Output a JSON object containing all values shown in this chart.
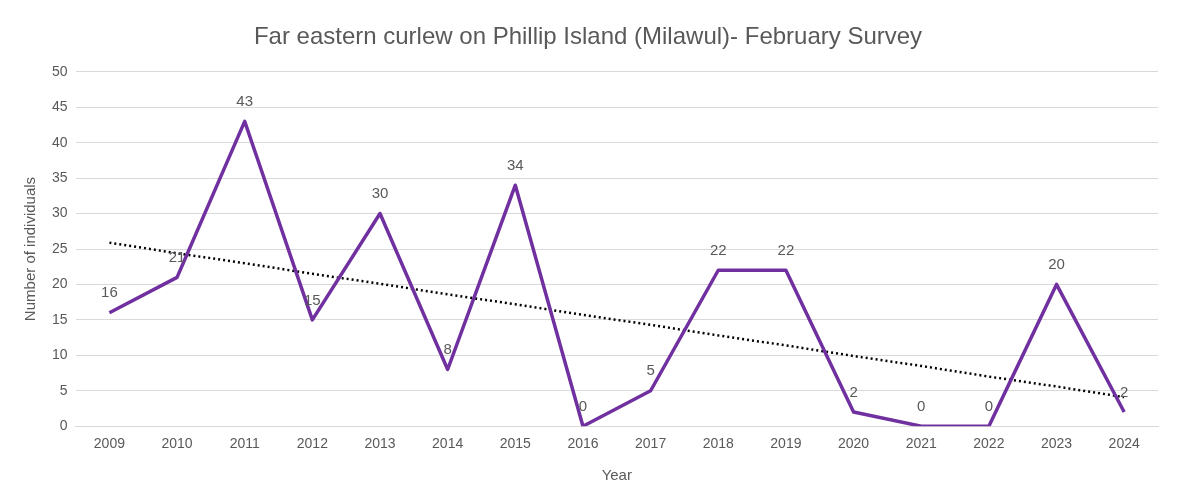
{
  "chart_data": {
    "type": "line",
    "title": "Far eastern curlew on Phillip Island (Milawul)- February Survey",
    "xlabel": "Year",
    "ylabel": "Number of individuals",
    "categories": [
      "2009",
      "2010",
      "2011",
      "2012",
      "2013",
      "2014",
      "2015",
      "2016",
      "2017",
      "2018",
      "2019",
      "2020",
      "2021",
      "2022",
      "2023",
      "2024"
    ],
    "series": [
      {
        "color": "#7030a0",
        "values": [
          16,
          21,
          43,
          15,
          30,
          8,
          34,
          0,
          5,
          22,
          22,
          2,
          0,
          0,
          20,
          2
        ],
        "data_labels": true
      },
      {
        "type": "line",
        "values": [
          25.9,
          24.4,
          23.0,
          21.5,
          20.1,
          18.6,
          17.2,
          15.7,
          14.3,
          12.8,
          11.4,
          9.9,
          8.5,
          7.0,
          5.6,
          4.1
        ],
        "color": "#000000",
        "line_style": "dotted"
      }
    ],
    "ylim": [
      0,
      50
    ],
    "yticks": [
      0,
      5,
      10,
      15,
      20,
      25,
      30,
      35,
      40,
      45,
      50
    ],
    "grid": "y",
    "legend": false,
    "marker": "none"
  }
}
